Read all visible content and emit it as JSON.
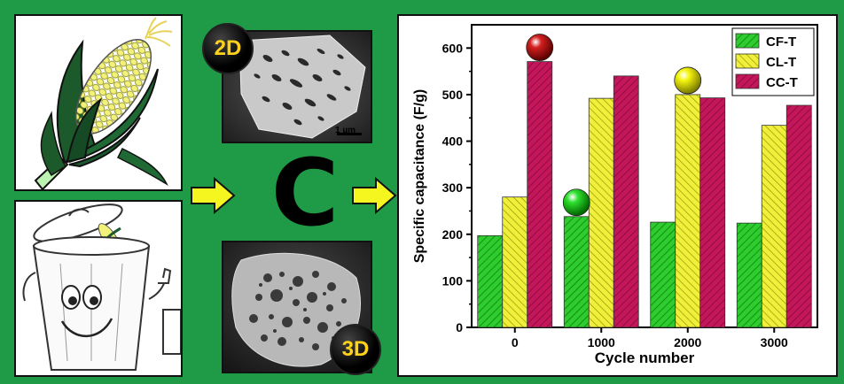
{
  "badges": {
    "two_d": "2D",
    "three_d": "3D"
  },
  "center_symbol": "C",
  "scale_bar_label": "1 µm",
  "chart_data": {
    "type": "bar",
    "categories": [
      "0",
      "1000",
      "2000",
      "3000"
    ],
    "series": [
      {
        "name": "CF-T",
        "values": [
          197,
          238,
          226,
          224
        ],
        "color": "#2ecc2e"
      },
      {
        "name": "CL-T",
        "values": [
          280,
          492,
          500,
          434
        ],
        "color": "#f0f03a"
      },
      {
        "name": "CC-T",
        "values": [
          571,
          540,
          493,
          477
        ],
        "color": "#c4165a"
      }
    ],
    "xlabel": "Cycle number",
    "ylabel": "Specific capacitance (F/g)",
    "ylim": [
      0,
      650
    ],
    "yticks": [
      0,
      100,
      200,
      300,
      400,
      500,
      600
    ],
    "legend_position": "top-right",
    "grid": false,
    "markers": [
      {
        "category": "0",
        "series": "CC-T",
        "color": "#d42020"
      },
      {
        "category": "1000",
        "series": "CF-T",
        "color": "#2ee02e"
      },
      {
        "category": "2000",
        "series": "CL-T",
        "color": "#f5f510"
      }
    ]
  }
}
